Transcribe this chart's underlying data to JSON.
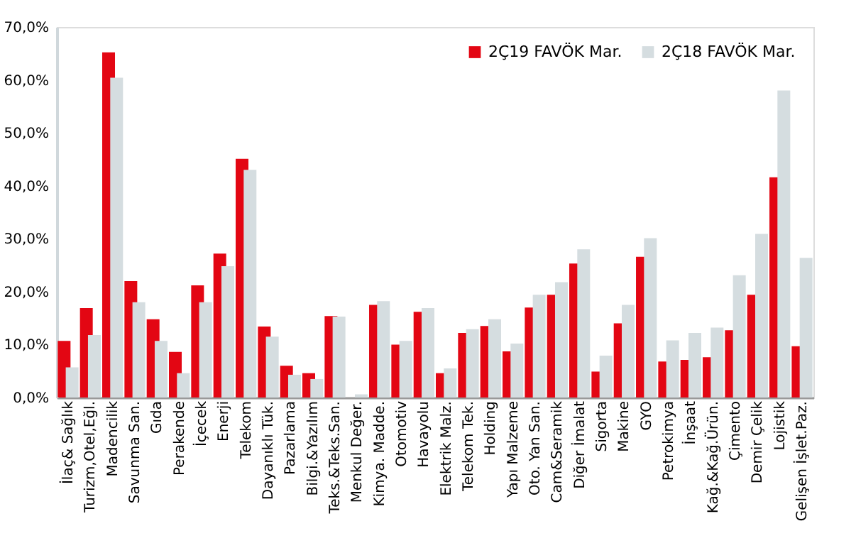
{
  "chart_data": {
    "type": "bar",
    "categories": [
      "İlaç& Sağlık",
      "Turizm,Otel,Eğl.",
      "Madencilik",
      "Savunma San.",
      "Gıda",
      "Perakende",
      "İçecek",
      "Enerji",
      "Telekom",
      "Dayanıklı Tük.",
      "Pazarlama",
      "Bilgi.&Yazılım",
      "Teks.&Teks.San.",
      "Menkul Değer.",
      "Kimya. Madde.",
      "Otomotiv",
      "Havayolu",
      "Elektrik Malz.",
      "Telekom Tek.",
      "Holding",
      "Yapı Malzeme",
      "Oto. Yan San.",
      "Cam&Seramik",
      "Diğer İmalat",
      "Sigorta",
      "Makine",
      "GYO",
      "Petrokimya",
      "İnşaat",
      "Kağ.&Kağ.Ürün.",
      "Çimento",
      "Demir Çelik",
      "Lojistik",
      "Gelişen İşlet.Paz."
    ],
    "series": [
      {
        "name": "2Ç19 FAVÖK Mar.",
        "color": "#e30613",
        "values": [
          10.7,
          16.9,
          65.2,
          22.0,
          14.8,
          8.6,
          21.2,
          27.2,
          45.1,
          13.4,
          6.0,
          4.6,
          15.4,
          null,
          17.5,
          10.0,
          16.2,
          4.6,
          12.2,
          13.5,
          8.7,
          17.0,
          19.4,
          25.3,
          4.9,
          14.0,
          26.6,
          6.8,
          7.1,
          7.6,
          12.7,
          19.4,
          41.6,
          9.7
        ]
      },
      {
        "name": "2Ç18 FAVÖK Mar.",
        "color": "#d5dde0",
        "values": [
          5.7,
          11.8,
          60.4,
          18.0,
          10.7,
          4.6,
          18.0,
          24.8,
          43.0,
          11.5,
          4.3,
          3.5,
          15.3,
          0.6,
          18.2,
          10.7,
          16.9,
          5.5,
          12.9,
          14.8,
          10.2,
          19.4,
          21.8,
          28.0,
          7.9,
          17.5,
          30.1,
          10.8,
          12.2,
          13.2,
          23.1,
          30.9,
          58.0,
          26.4
        ]
      }
    ],
    "ylim": [
      0,
      70
    ],
    "yticks": [
      {
        "value": 0,
        "label": "0,0%"
      },
      {
        "value": 10,
        "label": "10,0%"
      },
      {
        "value": 20,
        "label": "20,0%"
      },
      {
        "value": 30,
        "label": "30,0%"
      },
      {
        "value": 40,
        "label": "40,0%"
      },
      {
        "value": 50,
        "label": "50,0%"
      },
      {
        "value": 60,
        "label": "60,0%"
      },
      {
        "value": 70,
        "label": "70,0%"
      }
    ],
    "grid": false,
    "legend": "top right"
  }
}
